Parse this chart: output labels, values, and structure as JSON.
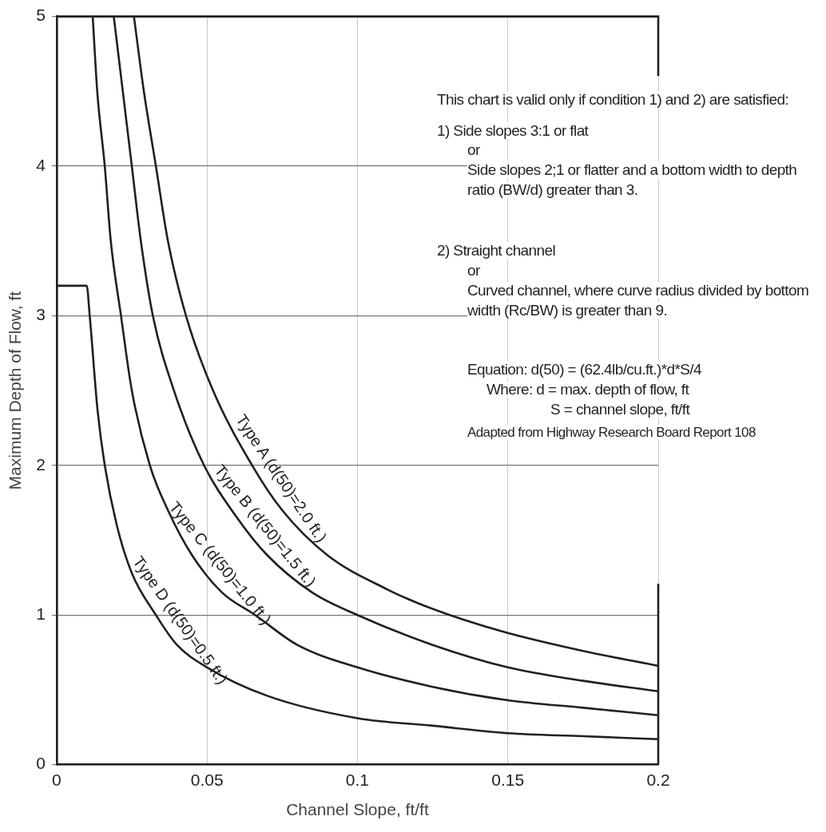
{
  "chart_data": {
    "type": "line",
    "xlabel": "Channel Slope, ft/ft",
    "ylabel": "Maximum Depth of Flow, ft",
    "xlim": [
      0,
      0.2
    ],
    "xticks": [
      0,
      0.05,
      0.1,
      0.15,
      0.2
    ],
    "ylim": [
      0,
      5
    ],
    "yticks": [
      0,
      1,
      2,
      3,
      4,
      5
    ],
    "grid": true,
    "legend": false,
    "marker": "none",
    "line_style": "solid",
    "series": [
      {
        "name": "Type A (d(50)=2.0 ft.)",
        "color": "#231f20",
        "x": [
          0.0257,
          0.029,
          0.033,
          0.037,
          0.043,
          0.052,
          0.065,
          0.075,
          0.09,
          0.11,
          0.12,
          0.135,
          0.15,
          0.175,
          0.2
        ],
        "values": [
          5,
          4.5,
          4,
          3.5,
          3,
          2.5,
          2,
          1.7,
          1.4,
          1.17,
          1.08,
          0.97,
          0.88,
          0.76,
          0.66
        ]
      },
      {
        "name": "Type B (d(50)=1.5 ft.)",
        "color": "#231f20",
        "x": [
          0.019,
          0.022,
          0.025,
          0.028,
          0.032,
          0.039,
          0.049,
          0.06,
          0.07,
          0.085,
          0.1,
          0.125,
          0.15,
          0.175,
          0.2
        ],
        "values": [
          5,
          4.5,
          4,
          3.5,
          3,
          2.5,
          2,
          1.65,
          1.4,
          1.15,
          1.0,
          0.8,
          0.65,
          0.56,
          0.49
        ]
      },
      {
        "name": "Type C (d(50)=1.0 ft.)",
        "color": "#231f20",
        "x": [
          0.012,
          0.0135,
          0.016,
          0.018,
          0.0214,
          0.025,
          0.031,
          0.037,
          0.045,
          0.055,
          0.066,
          0.08,
          0.1,
          0.125,
          0.15,
          0.175,
          0.2
        ],
        "values": [
          5,
          4.5,
          4,
          3.5,
          3,
          2.5,
          2,
          1.7,
          1.4,
          1.15,
          1.0,
          0.8,
          0.65,
          0.52,
          0.43,
          0.38,
          0.33
        ]
      },
      {
        "name": "Type D (d(50)=0.5 ft.)",
        "color": "#231f20",
        "x": [
          0,
          0.01,
          0.011,
          0.0136,
          0.016,
          0.02,
          0.025,
          0.033,
          0.04,
          0.05,
          0.07,
          0.1,
          0.125,
          0.15,
          0.175,
          0.2
        ],
        "values": [
          3.2,
          3.2,
          3.0,
          2.37,
          2.0,
          1.6,
          1.28,
          1.0,
          0.8,
          0.65,
          0.46,
          0.31,
          0.26,
          0.21,
          0.19,
          0.17
        ]
      }
    ],
    "annotations": [
      "This chart is valid only if condition 1) and 2) are satisfied:",
      "1)  Side slopes 3:1 or flat",
      "or",
      "Side slopes 2;1 or flatter and a bottom width to depth ratio (BW/d) greater than 3.",
      "2)  Straight channel",
      "or",
      "Curved channel, where curve radius divided by bottom width (Rc/BW) is greater than 9.",
      "Equation:  d(50) = (62.4lb/cu.ft.)*d*S/4",
      "Where:  d = max. depth of flow, ft",
      "S = channel slope, ft/ft",
      "Adapted from Highway Research Board Report 108"
    ]
  }
}
